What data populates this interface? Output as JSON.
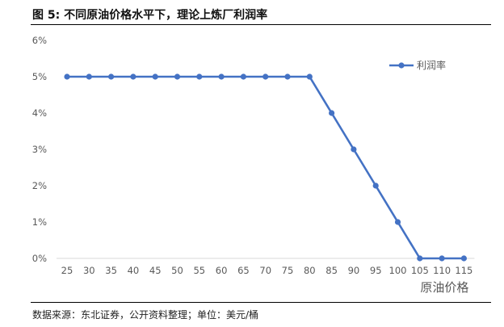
{
  "figure": {
    "title": "图 5:  不同原油价格水平下，理论上炼厂利润率",
    "source": "数据来源：东北证券，公开资料整理；单位：美元/桶"
  },
  "chart_data": {
    "type": "line",
    "title": "",
    "xlabel": "原油价格",
    "ylabel": "",
    "x": [
      25,
      30,
      35,
      40,
      45,
      50,
      55,
      60,
      65,
      70,
      75,
      80,
      85,
      90,
      95,
      100,
      105,
      110,
      115
    ],
    "series": [
      {
        "name": "利润率",
        "color": "#4472C4",
        "values": [
          5,
          5,
          5,
          5,
          5,
          5,
          5,
          5,
          5,
          5,
          5,
          5,
          4,
          3,
          2,
          1,
          0,
          0,
          0
        ]
      }
    ],
    "y_ticks": [
      "0%",
      "1%",
      "2%",
      "3%",
      "4%",
      "5%",
      "6%"
    ],
    "ylim": [
      0,
      6
    ],
    "grid": false,
    "legend": "top-right"
  }
}
